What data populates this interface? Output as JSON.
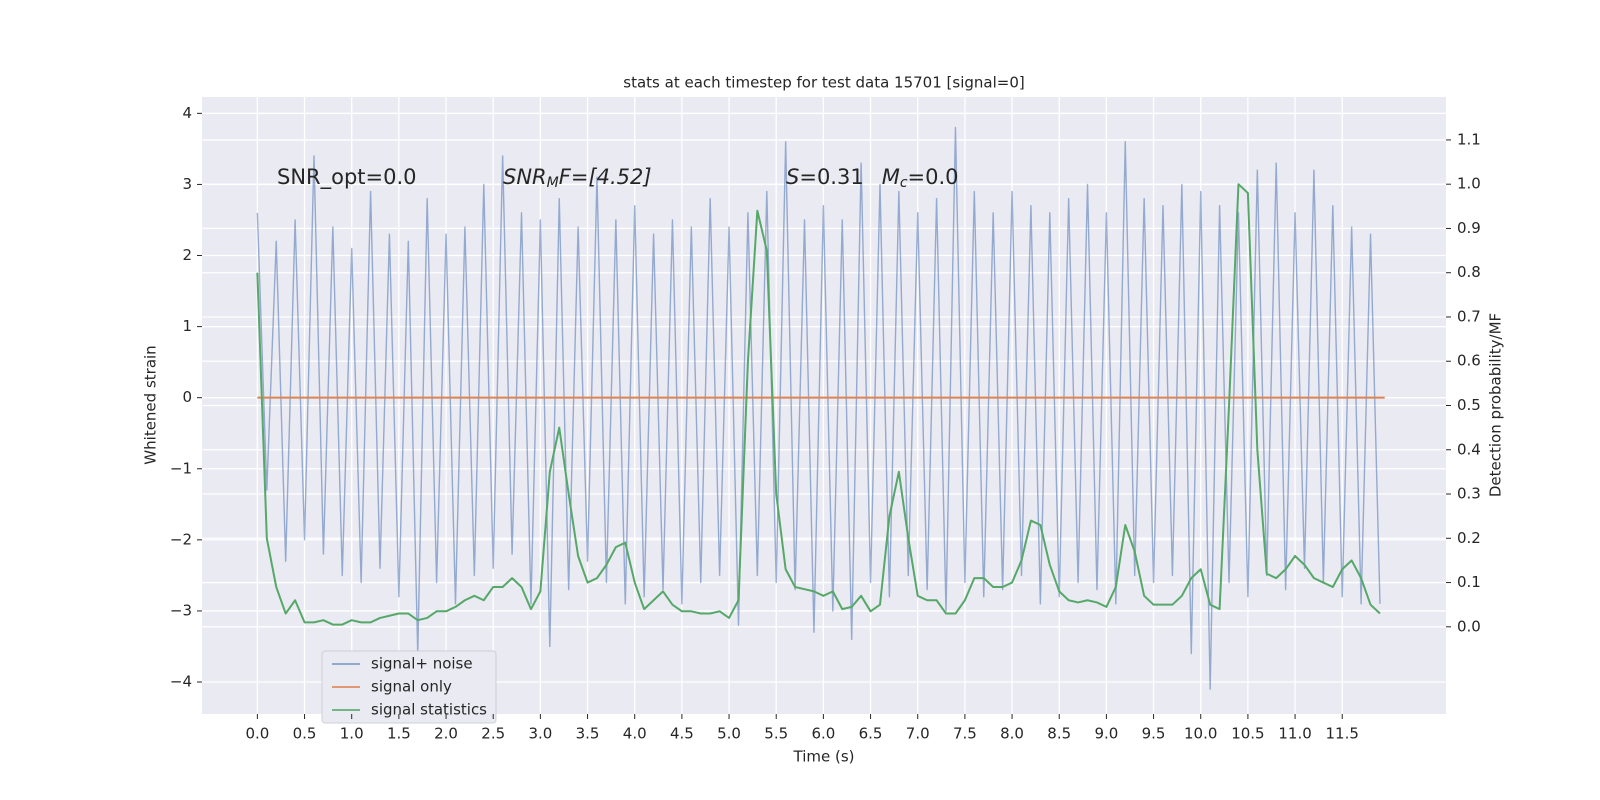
{
  "chart_data": {
    "type": "line",
    "title": "stats at each timestep for test data 15701 [signal=0]",
    "x_label": "Time (s)",
    "y_label": "Whitened strain",
    "y2_label": "Detection probability/MF",
    "annotations": [
      [
        "SNR_opt=0.0"
      ],
      [
        "SNR",
        "M",
        "F=[4.52]"
      ],
      [
        "S",
        "=0.31",
        "M",
        "c",
        "=0.0"
      ]
    ],
    "xlim": [
      -0.587,
      12.6
    ],
    "ylim": [
      -4.45,
      4.23
    ],
    "y2lim": [
      -0.197,
      1.197
    ],
    "xticks": [
      {
        "value": 0,
        "label": "0.0"
      },
      0.5,
      {
        "value": 1,
        "label": "1.0"
      },
      1.5,
      {
        "value": 2,
        "label": "2.0"
      },
      2.5,
      {
        "value": 3,
        "label": "3.0"
      },
      3.5,
      {
        "value": 4,
        "label": "4.0"
      },
      4.5,
      {
        "value": 5,
        "label": "5.0"
      },
      5.5,
      {
        "value": 6,
        "label": "6.0"
      },
      6.5,
      {
        "value": 7,
        "label": "7.0"
      },
      7.5,
      {
        "value": 8,
        "label": "8.0"
      },
      8.5,
      {
        "value": 9,
        "label": "9.0"
      },
      9.5,
      {
        "value": 10,
        "label": "10.0"
      },
      10.5,
      {
        "value": 11,
        "label": "11.0"
      },
      11.5
    ],
    "yticks": [
      {
        "value": -4,
        "label": "−4"
      },
      {
        "value": -3,
        "label": "−3"
      },
      {
        "value": -2,
        "label": "−2"
      },
      {
        "value": -1,
        "label": "−1"
      },
      0,
      1,
      2,
      3,
      4
    ],
    "y2ticks": [
      {
        "value": 0,
        "label": "0.0"
      },
      0.1,
      0.2,
      0.3,
      0.4,
      0.5,
      0.6,
      0.7,
      0.8,
      0.9,
      {
        "value": 1,
        "label": "1.0"
      },
      1.1
    ],
    "grid": true,
    "legend": "lower left",
    "x": [
      0,
      0.1,
      0.2,
      0.3,
      0.4,
      0.5,
      0.6,
      0.7,
      0.8,
      0.9,
      1,
      1.1,
      1.2,
      1.3,
      1.4,
      1.5,
      1.6,
      1.7,
      1.8,
      1.9,
      2,
      2.1,
      2.2,
      2.3,
      2.4,
      2.5,
      2.6,
      2.7,
      2.8,
      2.9,
      3,
      3.1,
      3.2,
      3.3,
      3.4,
      3.5,
      3.6,
      3.7,
      3.8,
      3.9,
      4,
      4.1,
      4.2,
      4.3,
      4.4,
      4.5,
      4.6,
      4.7,
      4.8,
      4.9,
      5,
      5.1,
      5.2,
      5.3,
      5.4,
      5.5,
      5.6,
      5.7,
      5.8,
      5.9,
      6,
      6.1,
      6.2,
      6.3,
      6.4,
      6.5,
      6.6,
      6.7,
      6.8,
      6.9,
      7,
      7.1,
      7.2,
      7.3,
      7.4,
      7.5,
      7.6,
      7.7,
      7.8,
      7.9,
      8,
      8.1,
      8.2,
      8.3,
      8.4,
      8.5,
      8.6,
      8.7,
      8.8,
      8.9,
      9,
      9.1,
      9.2,
      9.3,
      9.4,
      9.5,
      9.6,
      9.7,
      9.8,
      9.9,
      10,
      10.1,
      10.2,
      10.3,
      10.4,
      10.5,
      10.6,
      10.7,
      10.8,
      10.9,
      11,
      11.1,
      11.2,
      11.3,
      11.4,
      11.5,
      11.6,
      11.7,
      11.8,
      11.9
    ],
    "series": [
      {
        "name": "signal+ noise",
        "color": "#4c72b0",
        "values": [
          2.6,
          -1.3,
          2.2,
          -2.3,
          2.5,
          -2.0,
          3.4,
          -2.2,
          2.4,
          -2.5,
          2.1,
          -2.6,
          2.9,
          -2.4,
          2.3,
          -2.8,
          2.2,
          -3.6,
          2.8,
          -2.6,
          2.3,
          -2.9,
          2.4,
          -2.5,
          3.0,
          -2.4,
          3.4,
          -2.2,
          2.6,
          -2.9,
          2.5,
          -3.5,
          2.8,
          -2.7,
          2.4,
          -2.3,
          3.1,
          -2.6,
          2.5,
          -2.9,
          2.7,
          -2.8,
          2.3,
          -2.7,
          2.5,
          -2.9,
          2.4,
          -2.6,
          2.8,
          -2.5,
          2.4,
          -3.2,
          2.6,
          -2.5,
          2.9,
          -2.6,
          3.6,
          -2.7,
          2.5,
          -3.3,
          2.7,
          -3.0,
          2.5,
          -3.4,
          3.3,
          -2.6,
          3.0,
          -2.8,
          2.9,
          -2.5,
          2.6,
          -2.7,
          2.8,
          -3.0,
          3.8,
          -2.6,
          2.9,
          -2.8,
          2.6,
          -2.7,
          2.9,
          -2.5,
          2.7,
          -2.9,
          2.6,
          -2.8,
          2.8,
          -2.6,
          3.0,
          -2.7,
          2.6,
          -2.9,
          3.6,
          -2.5,
          2.8,
          -2.6,
          2.7,
          -2.5,
          3.0,
          -3.6,
          2.9,
          -4.1,
          2.7,
          -2.6,
          2.6,
          -2.8,
          3.2,
          -2.5,
          3.3,
          -2.7,
          2.6,
          -2.4,
          3.2,
          -2.6,
          2.7,
          -2.8,
          2.4,
          -2.9,
          2.3,
          -2.9
        ]
      },
      {
        "name": "signal only",
        "color": "#dd8452",
        "x": [
          0,
          11.95
        ],
        "values": [
          0,
          0
        ]
      },
      {
        "name": "signal statistics",
        "color": "#55a868",
        "axis": "y2",
        "values": [
          0.8,
          0.2,
          0.09,
          0.03,
          0.06,
          0.01,
          0.01,
          0.015,
          0.005,
          0.005,
          0.015,
          0.01,
          0.01,
          0.02,
          0.025,
          0.03,
          0.03,
          0.015,
          0.02,
          0.035,
          0.035,
          0.045,
          0.06,
          0.07,
          0.06,
          0.09,
          0.09,
          0.11,
          0.09,
          0.04,
          0.08,
          0.35,
          0.45,
          0.3,
          0.16,
          0.1,
          0.11,
          0.14,
          0.18,
          0.19,
          0.1,
          0.04,
          0.06,
          0.08,
          0.05,
          0.035,
          0.035,
          0.03,
          0.03,
          0.035,
          0.02,
          0.06,
          0.6,
          0.94,
          0.85,
          0.3,
          0.13,
          0.09,
          0.085,
          0.08,
          0.07,
          0.08,
          0.04,
          0.045,
          0.07,
          0.035,
          0.05,
          0.25,
          0.35,
          0.2,
          0.07,
          0.06,
          0.06,
          0.03,
          0.03,
          0.06,
          0.11,
          0.11,
          0.09,
          0.09,
          0.1,
          0.15,
          0.24,
          0.23,
          0.14,
          0.08,
          0.06,
          0.055,
          0.06,
          0.055,
          0.045,
          0.09,
          0.23,
          0.17,
          0.07,
          0.05,
          0.05,
          0.05,
          0.07,
          0.11,
          0.13,
          0.05,
          0.04,
          0.5,
          1.0,
          0.98,
          0.4,
          0.12,
          0.11,
          0.13,
          0.16,
          0.14,
          0.11,
          0.1,
          0.09,
          0.13,
          0.15,
          0.11,
          0.05,
          0.03
        ]
      }
    ]
  }
}
